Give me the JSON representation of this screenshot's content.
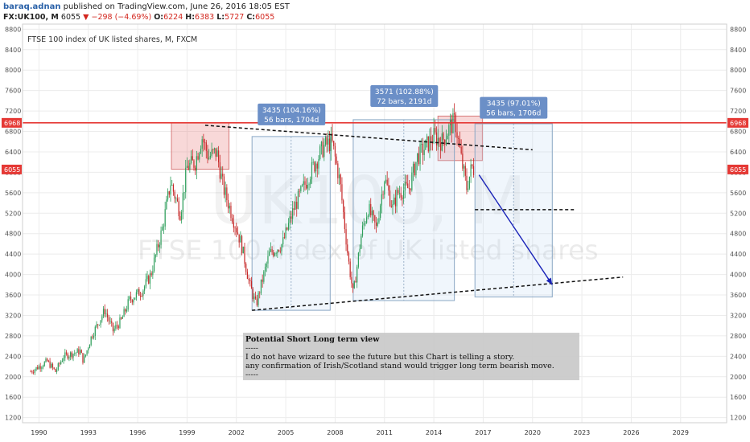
{
  "header": {
    "user": "baraq.adnan",
    "published": " published on TradingView.com, June 26, 2016 18:05 EST",
    "symbol": "FX:UK100, M",
    "last": "6055",
    "change": "−298 (−4.69%)",
    "o_label": "O:",
    "o": "6224",
    "h_label": "H:",
    "h": "6383",
    "l_label": "L:",
    "l": "5727",
    "c_label": "C:",
    "c": "6055"
  },
  "chart_data": {
    "type": "candlestick",
    "title": "FTSE 100 index of UK listed shares, M, FXCM",
    "watermark_symbol": "UK100, M",
    "watermark_name": "FTSE 100 index of UK listed shares",
    "y_ticks": [
      "8800",
      "8400",
      "8000",
      "7600",
      "7200",
      "6800",
      "6400",
      "6000",
      "5600",
      "5200",
      "4800",
      "4400",
      "4000",
      "3600",
      "3200",
      "2800",
      "2400",
      "2000",
      "1600",
      "1200"
    ],
    "x_ticks": [
      "1990",
      "1993",
      "1996",
      "1999",
      "2002",
      "2005",
      "2008",
      "2011",
      "2014",
      "2017",
      "2020",
      "2023",
      "2026",
      "2029"
    ],
    "x_range": [
      1989.0,
      2031.8
    ],
    "y_range": [
      1100,
      8900
    ],
    "horizontal_line": {
      "label": "6968",
      "value": 6968,
      "color": "#e53935"
    },
    "last_price": {
      "label": "6055",
      "value": 6055,
      "color": "#e53935"
    },
    "price_path": [
      [
        1989.5,
        2100
      ],
      [
        1990.5,
        2300
      ],
      [
        1991.0,
        2100
      ],
      [
        1991.5,
        2400
      ],
      [
        1992.5,
        2500
      ],
      [
        1992.7,
        2300
      ],
      [
        1993.2,
        2800
      ],
      [
        1994.0,
        3300
      ],
      [
        1994.5,
        2900
      ],
      [
        1995.0,
        3100
      ],
      [
        1995.5,
        3500
      ],
      [
        1996.3,
        3700
      ],
      [
        1996.8,
        4000
      ],
      [
        1997.5,
        4900
      ],
      [
        1998.0,
        5800
      ],
      [
        1998.6,
        5200
      ],
      [
        1999.0,
        6100
      ],
      [
        1999.5,
        6200
      ],
      [
        1999.9,
        6700
      ],
      [
        2000.3,
        6300
      ],
      [
        2000.8,
        6400
      ],
      [
        2001.2,
        5700
      ],
      [
        2001.7,
        5200
      ],
      [
        2002.3,
        4600
      ],
      [
        2002.8,
        3800
      ],
      [
        2003.2,
        3400
      ],
      [
        2003.5,
        3800
      ],
      [
        2004.0,
        4400
      ],
      [
        2004.8,
        4600
      ],
      [
        2005.5,
        5300
      ],
      [
        2006.5,
        6000
      ],
      [
        2007.3,
        6500
      ],
      [
        2007.8,
        6600
      ],
      [
        2008.3,
        5800
      ],
      [
        2008.8,
        4300
      ],
      [
        2009.1,
        3600
      ],
      [
        2009.6,
        4800
      ],
      [
        2010.0,
        5300
      ],
      [
        2010.5,
        4900
      ],
      [
        2011.0,
        5900
      ],
      [
        2011.5,
        5300
      ],
      [
        2011.8,
        5600
      ],
      [
        2012.5,
        5700
      ],
      [
        2013.0,
        6300
      ],
      [
        2013.5,
        6500
      ],
      [
        2014.0,
        6700
      ],
      [
        2014.5,
        6600
      ],
      [
        2015.0,
        6900
      ],
      [
        2015.3,
        7000
      ],
      [
        2015.7,
        6200
      ],
      [
        2016.0,
        5700
      ],
      [
        2016.3,
        6100
      ],
      [
        2016.45,
        6050
      ]
    ],
    "boxes": [
      {
        "x0": 1998.05,
        "x1": 2001.55,
        "y0": 6060,
        "y1": 6968,
        "fill": "rgba(229,115,115,0.28)",
        "stroke": "#d77a7a"
      },
      {
        "x0": 2014.25,
        "x1": 2016.95,
        "y0": 6230,
        "y1": 7100,
        "fill": "rgba(229,115,115,0.28)",
        "stroke": "#d77a7a"
      },
      {
        "x0": 2002.95,
        "x1": 2007.7,
        "y0": 3300,
        "y1": 6700,
        "fill": "rgba(187,214,240,0.22)",
        "stroke": "#8aa7c4"
      },
      {
        "x0": 2009.1,
        "x1": 2015.25,
        "y0": 3490,
        "y1": 7030,
        "fill": "rgba(187,214,240,0.22)",
        "stroke": "#8aa7c4"
      },
      {
        "x0": 2016.5,
        "x1": 2021.2,
        "y0": 3560,
        "y1": 6950,
        "fill": "rgba(187,214,240,0.22)",
        "stroke": "#8aa7c4"
      }
    ],
    "measures": [
      {
        "lines": [
          "3435 (104.16%)",
          "56 bars, 1704d"
        ],
        "x": 2005.35,
        "y": 7220
      },
      {
        "lines": [
          "3571 (102.88%)",
          "72 bars, 2191d"
        ],
        "x": 2012.2,
        "y": 7580
      },
      {
        "lines": [
          "3435 (97.01%)",
          "56 bars, 1706d"
        ],
        "x": 2018.85,
        "y": 7350
      }
    ],
    "trendlines": [
      {
        "x0": 2000.1,
        "y0": 6920,
        "x1": 2020.0,
        "y1": 6440
      },
      {
        "x0": 2002.95,
        "y0": 3300,
        "x1": 2025.5,
        "y1": 3950
      },
      {
        "x0": 2016.5,
        "y0": 5270,
        "x1": 2022.6,
        "y1": 5270
      }
    ],
    "arrow": {
      "x0": 2016.75,
      "y0": 5950,
      "x1": 2021.2,
      "y1": 3800,
      "color": "#1a23b8"
    },
    "note": {
      "lines": [
        "Potential Short Long term view",
        "-----",
        "I do not have wizard to see the future but this Chart is telling a story.",
        "any confirmation of Irish/Scotland stand would trigger long term bearish move.",
        "-----"
      ],
      "x0": 2002.4,
      "y0": 2860
    }
  }
}
